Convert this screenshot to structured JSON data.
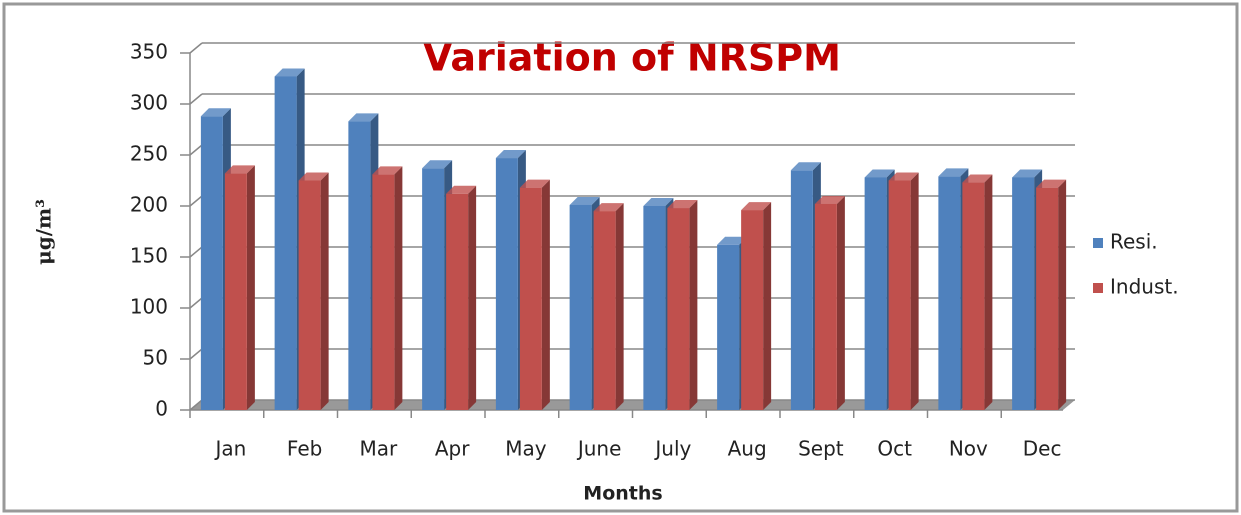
{
  "chart_data": {
    "type": "bar",
    "title": "Variation of NRSPM",
    "ylabel": "μg/m³",
    "xlabel": "Months",
    "categories": [
      "Jan",
      "Feb",
      "Mar",
      "Apr",
      "May",
      "June",
      "July",
      "Aug",
      "Sept",
      "Oct",
      "Nov",
      "Dec"
    ],
    "series": [
      {
        "name": "Resi.",
        "color": "#4f81bd",
        "values": [
          288,
          327,
          283,
          237,
          247,
          201,
          200,
          162,
          235,
          228,
          229,
          228
        ]
      },
      {
        "name": "Indust.",
        "color": "#c0504d",
        "values": [
          232,
          225,
          231,
          212,
          218,
          195,
          198,
          196,
          202,
          225,
          223,
          218
        ]
      }
    ],
    "ylim": [
      0,
      350
    ],
    "yticks": [
      0,
      50,
      100,
      150,
      200,
      250,
      300,
      350
    ],
    "grid": true,
    "legend": "right"
  }
}
